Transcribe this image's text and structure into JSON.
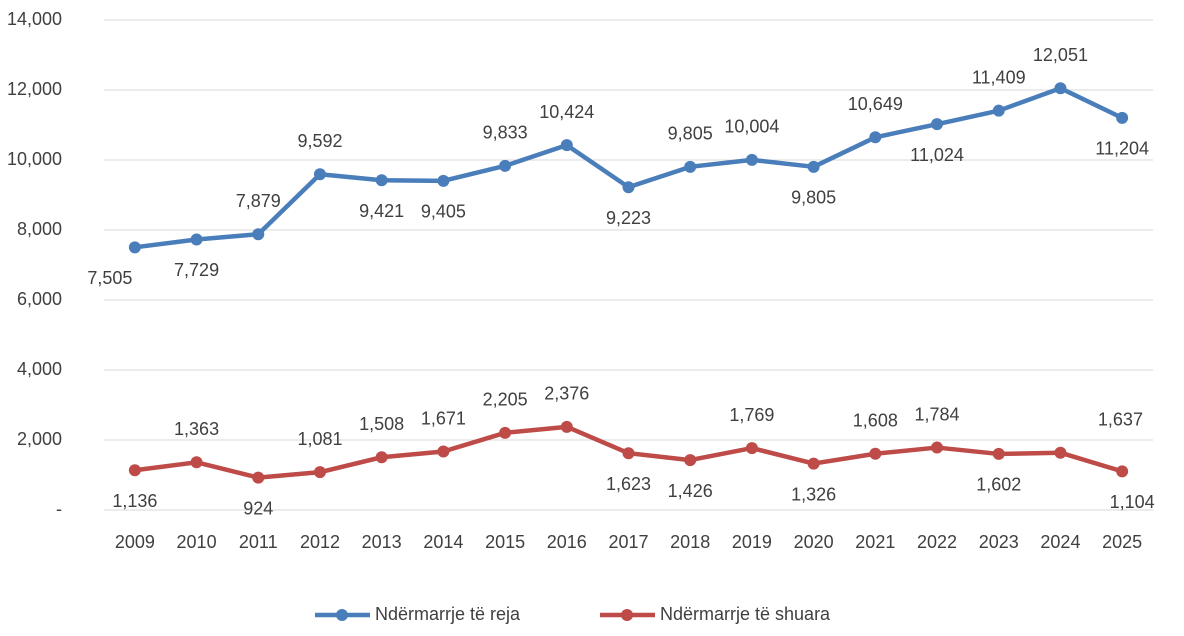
{
  "chart_data": {
    "type": "line",
    "categories": [
      "2009",
      "2010",
      "2011",
      "2012",
      "2013",
      "2014",
      "2015",
      "2016",
      "2017",
      "2018",
      "2019",
      "2020",
      "2021",
      "2022",
      "2023",
      "2024",
      "2025"
    ],
    "series": [
      {
        "name": "Ndërmarrje të reja",
        "color": "#4a7ebb",
        "values": [
          7505,
          7729,
          7879,
          9592,
          9421,
          9405,
          9833,
          10424,
          9223,
          9805,
          10004,
          9805,
          10649,
          11024,
          11409,
          12051,
          11204
        ],
        "value_labels": [
          "7,505",
          "7,729",
          "7,879",
          "9,592",
          "9,421",
          "9,405",
          "9,833",
          "10,424",
          "9,223",
          "9,805",
          "10,004",
          "9,805",
          "10,649",
          "11,024",
          "11,409",
          "12,051",
          "11,204"
        ]
      },
      {
        "name": "Ndërmarrje të shuara",
        "color": "#be4b48",
        "values": [
          1136,
          1363,
          924,
          1081,
          1508,
          1671,
          2205,
          2376,
          1623,
          1426,
          1769,
          1326,
          1608,
          1784,
          1602,
          1637,
          1104
        ],
        "value_labels": [
          "1,136",
          "1,363",
          "924",
          "1,081",
          "1,508",
          "1,671",
          "2,205",
          "2,376",
          "1,623",
          "1,426",
          "1,769",
          "1,326",
          "1,608",
          "1,784",
          "1,602",
          "1,637",
          "1,104"
        ]
      }
    ],
    "ylim": [
      0,
      14000
    ],
    "yticks": [
      {
        "value": 0,
        "label": "-"
      },
      {
        "value": 2000,
        "label": "2,000"
      },
      {
        "value": 4000,
        "label": "4,000"
      },
      {
        "value": 6000,
        "label": "6,000"
      },
      {
        "value": 8000,
        "label": "8,000"
      },
      {
        "value": 10000,
        "label": "10,000"
      },
      {
        "value": 12000,
        "label": "12,000"
      },
      {
        "value": 14000,
        "label": "14,000"
      }
    ],
    "grid": true,
    "legend": "bottom"
  }
}
